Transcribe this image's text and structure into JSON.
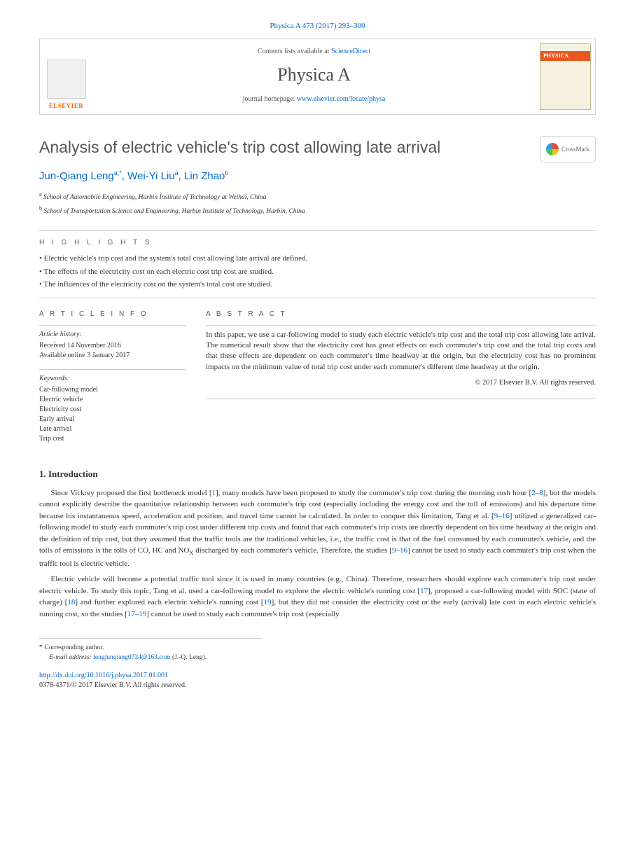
{
  "header": {
    "citation": "Physica A 473 (2017) 293–300",
    "contents_prefix": "Contents lists available at ",
    "contents_link": "ScienceDirect",
    "journal": "Physica A",
    "homepage_prefix": "journal homepage: ",
    "homepage_link": "www.elsevier.com/locate/physa",
    "publisher": "ELSEVIER",
    "cover_label": "PHYSICA"
  },
  "crossmark": {
    "label": "CrossMark"
  },
  "article": {
    "title": "Analysis of electric vehicle's trip cost allowing late arrival",
    "authors_html": "Jun-Qiang Leng|a,*|, Wei-Yi Liu|a|, Lin Zhao|b|",
    "authors": [
      {
        "name": "Jun-Qiang Leng",
        "sup": "a,*"
      },
      {
        "name": "Wei-Yi Liu",
        "sup": "a"
      },
      {
        "name": "Lin Zhao",
        "sup": "b"
      }
    ],
    "affiliations": [
      {
        "sup": "a",
        "text": "School of Automobile Engineering, Harbin Institute of Technology at Weihai, China"
      },
      {
        "sup": "b",
        "text": "School of Transportation Science and Engineering, Harbin Institute of Technology, Harbin, China"
      }
    ]
  },
  "labels": {
    "highlights": "h i g h l i g h t s",
    "article_info": "a r t i c l e   i n f o",
    "abstract": "a b s t r a c t"
  },
  "highlights": [
    "Electric vehicle's trip cost and the system's total cost allowing late arrival are defined.",
    "The effects of the electricity cost on each electric cost trip cost are studied.",
    "The influences of the electricity cost on the system's total cost are studied."
  ],
  "info": {
    "history_head": "Article history:",
    "received": "Received 14 November 2016",
    "available": "Available online 3 January 2017",
    "keywords_head": "Keywords:",
    "keywords": [
      "Car-following model",
      "Electric vehicle",
      "Electricity cost",
      "Early arrival",
      "Late arrival",
      "Trip cost"
    ]
  },
  "abstract": {
    "text": "In this paper, we use a car-following model to study each electric vehicle's trip cost and the total trip cost allowing late arrival. The numerical result show that the electricity cost has great effects on each commuter's trip cost and the total trip costs and that these effects are dependent on each commuter's time headway at the origin, but the electricity cost has no prominent impacts on the minimum value of total trip cost under each commuter's different time headway at the origin.",
    "copyright": "© 2017 Elsevier B.V. All rights reserved."
  },
  "sections": {
    "intro_title": "1. Introduction",
    "intro_p1": "Since Vickrey proposed the first bottleneck model [1], many models have been proposed to study the commuter's trip cost during the morning rush hour [2–8], but the models cannot explicitly describe the quantitative relationship between each commuter's trip cost (especially including the energy cost and the toll of emissions) and his departure time because his instantaneous speed, acceleration and position, and travel time cannot be calculated. In order to conquer this limitation, Tang et al. [9–16] utilized a generalized car-following model to study each commuter's trip cost under different trip costs and found that each commuter's trip costs are directly dependent on his time headway at the origin and the definition of trip cost, but they assumed that the traffic tools are the traditional vehicles, i.e., the traffic cost is that of the fuel consumed by each commuter's vehicle, and the tolls of emissions is the tolls of CO, HC and NOX discharged by each commuter's vehicle. Therefore, the studies [9–16] cannot be used to study each commuter's trip cost when the traffic tool is electric vehicle.",
    "intro_p2": "Electric vehicle will become a potential traffic tool since it is used in many countries (e.g., China). Therefore, researchers should explore each commuter's trip cost under electric vehicle. To study this topic, Tang et al. used a car-following model to explore the electric vehicle's running cost [17], proposed a car-following model with SOC (state of charge) [18] and further explored each electric vehicle's running cost [19], but they did not consider the electricity cost or the early (arrival) late cost in each electric vehicle's running cost, so the studies [17–19] cannot be used to study each commuter's trip cost (especially",
    "refs_p1": [
      "1",
      "2–8",
      "9–16",
      "9–16"
    ],
    "refs_p2": [
      "17",
      "18",
      "19",
      "17–19"
    ]
  },
  "footnotes": {
    "corr": "Corresponding author.",
    "email_label": "E-mail address: ",
    "email": "lengjunqiang0724@163.com",
    "email_suffix": " (J.-Q. Leng)."
  },
  "doi": {
    "link": "http://dx.doi.org/10.1016/j.physa.2017.01.001",
    "issn_line": "0378-4371/© 2017 Elsevier B.V. All rights reserved."
  },
  "colors": {
    "link": "#0066cc",
    "publisher": "#ff6600",
    "text": "#333333",
    "rule": "#cccccc",
    "cover_bg": "#f5f1e0",
    "cover_stripe": "#e8571f"
  }
}
